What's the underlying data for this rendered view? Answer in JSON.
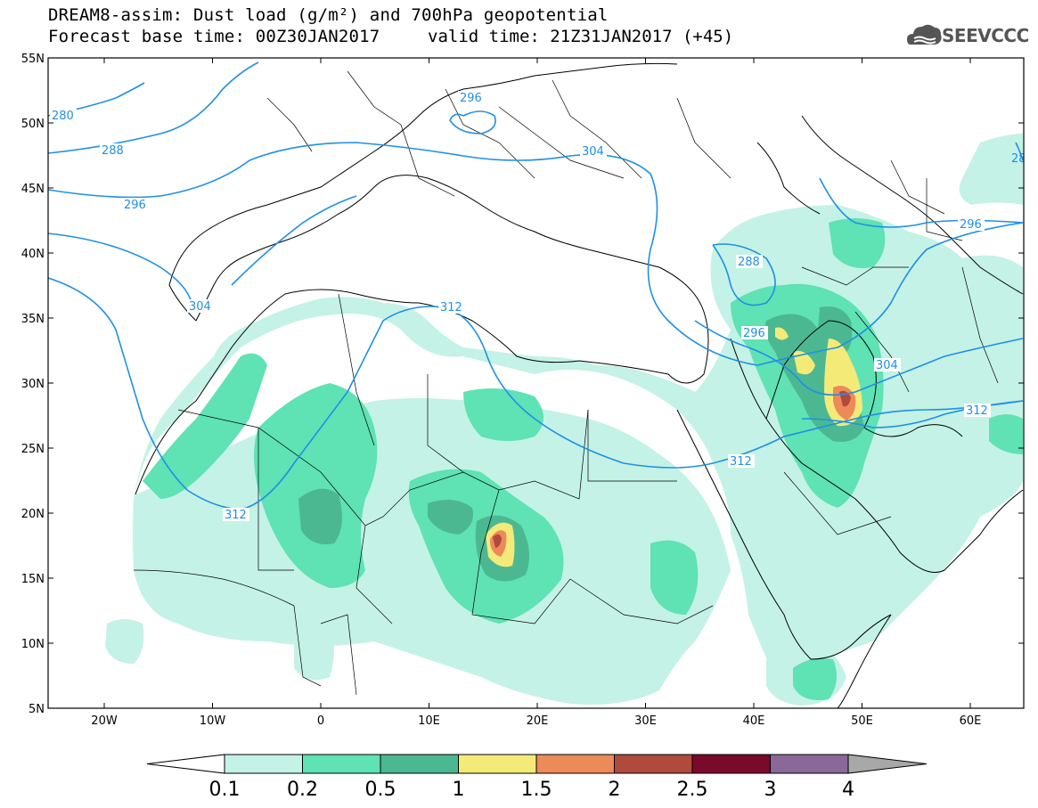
{
  "header": {
    "title_line1": "DREAM8-assim: Dust load (g/m²) and 700hPa geopotential",
    "title_line2": "Forecast base time: 00Z30JAN2017",
    "valid_time": "valid time: 21Z31JAN2017 (+45)"
  },
  "logo": {
    "text": "SEEVCCC",
    "icon": "cloud-logo-icon"
  },
  "axes": {
    "lat_labels": [
      "55N",
      "50N",
      "45N",
      "40N",
      "35N",
      "30N",
      "25N",
      "20N",
      "15N",
      "10N",
      "5N"
    ],
    "lon_labels": [
      "20W",
      "10W",
      "0",
      "10E",
      "20E",
      "30E",
      "40E",
      "50E",
      "60E"
    ]
  },
  "contour_labels": [
    "280",
    "288",
    "296",
    "296",
    "304",
    "304",
    "312",
    "312",
    "312",
    "288",
    "296",
    "296",
    "304",
    "312",
    "28"
  ],
  "colorbar": {
    "labels": [
      "0.1",
      "0.2",
      "0.5",
      "1",
      "1.5",
      "2",
      "2.5",
      "3",
      "4"
    ],
    "colors": [
      "#c4f2e6",
      "#5fe2b4",
      "#4cb891",
      "#f4ea78",
      "#ec8a5a",
      "#b04a3c",
      "#7a0a2c",
      "#8a6898",
      "#a8a8a8"
    ]
  },
  "colors": {
    "contour": "#1e90e6",
    "border": "#000000",
    "dust_low": "#c4f2e6",
    "dust_mid": "#5fe2b4",
    "dust_high": "#4cb891",
    "dust_1": "#f4ea78",
    "dust_15": "#ec8a5a",
    "dust_2": "#b04a3c"
  }
}
